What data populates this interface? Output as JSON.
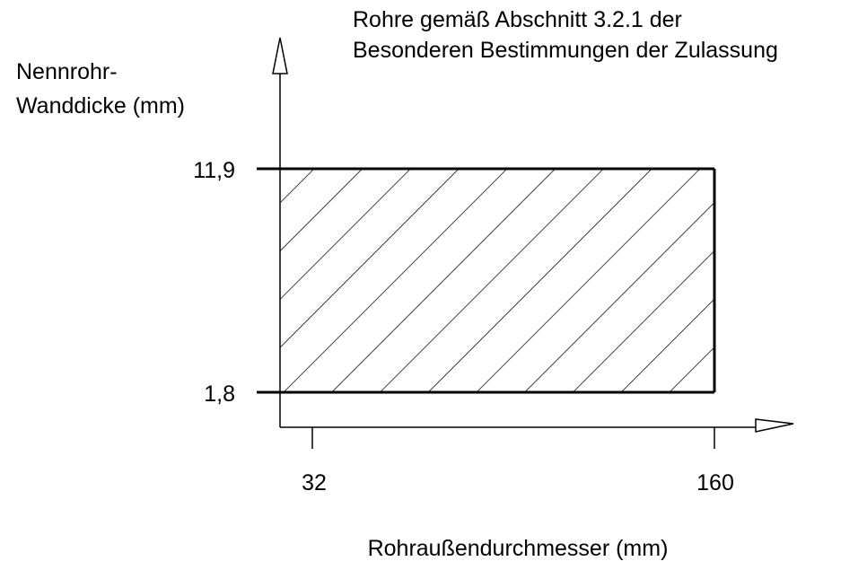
{
  "title": [
    "Rohre gemäß Abschnitt 3.2.1 der",
    "Besonderen Bestimmungen der Zulassung"
  ],
  "y_axis": {
    "label": [
      "Nennrohr-",
      "Wanddicke (mm)"
    ],
    "ticks": [
      "11,9",
      "1,8"
    ]
  },
  "x_axis": {
    "label": "Rohraußendurchmesser (mm)",
    "ticks": [
      "32",
      "160"
    ]
  }
}
